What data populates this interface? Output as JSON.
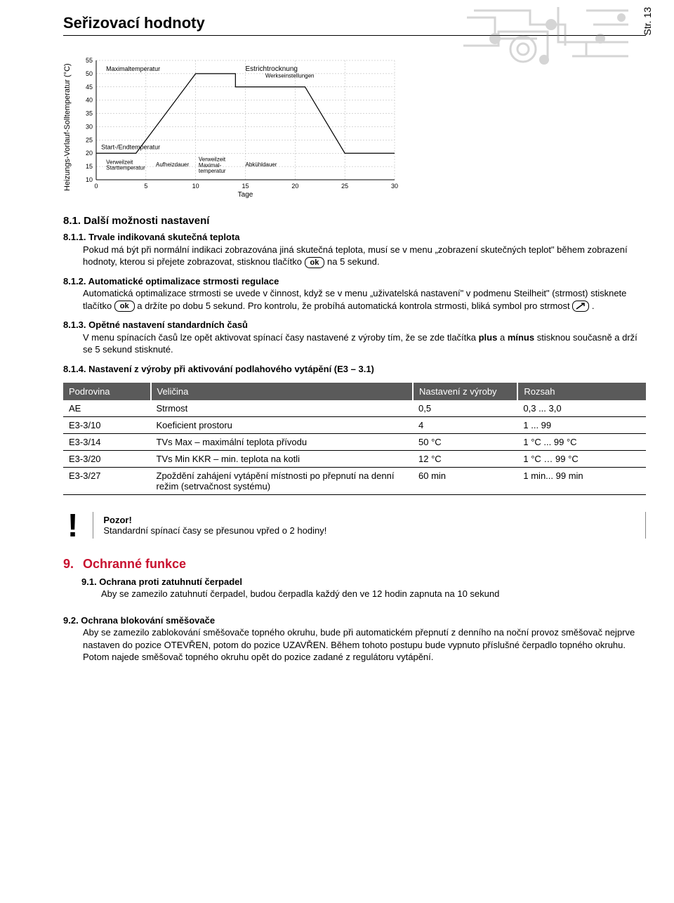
{
  "page_number": "Str. 13",
  "header_title": "Seřizovací hodnoty",
  "chart": {
    "type": "line",
    "y_axis_label": "Heizungs-Vorlauf-Solltemperatur (°C)",
    "x_axis_label": "Tage",
    "ylim": [
      10,
      55
    ],
    "ytick_step": 5,
    "xlim": [
      0,
      30
    ],
    "xtick_step": 5,
    "grid_color": "#b0b0b0",
    "line_color": "#000000",
    "line_width": 1.2,
    "background": "#ffffff",
    "label_fontsize": 9,
    "points": [
      {
        "x": 0,
        "y": 20
      },
      {
        "x": 4,
        "y": 20
      },
      {
        "x": 10,
        "y": 50
      },
      {
        "x": 14,
        "y": 50
      },
      {
        "x": 14,
        "y": 45
      },
      {
        "x": 21,
        "y": 45
      },
      {
        "x": 25,
        "y": 20
      },
      {
        "x": 30,
        "y": 20
      }
    ],
    "annotations": {
      "max_temp": "Maximaltemperatur",
      "start_end": "Start-/Endtemperatur",
      "verweil_start": "Verweilzeit\nStarttemperatur",
      "aufheiz": "Aufheizdauer",
      "verweil_max": "Verweilzeit\nMaximal-\ntemperatur",
      "abkuehl": "Abkühldauer",
      "estrich": "Estrichtrocknung",
      "werks": "Werkseinstellungen"
    }
  },
  "s81_heading": "8.1.  Další možnosti nastavení",
  "s811": {
    "heading": "8.1.1. Trvale indikovaná skutečná teplota",
    "body_a": "Pokud má být při normální indikaci zobrazována jiná skutečná teplota, musí se v menu „zobrazení skutečných teplot\" během zobrazení hodnoty, kterou si přejete zobrazovat, stisknou tlačítko ",
    "ok": "ok",
    "body_b": " na 5 sekund."
  },
  "s812": {
    "heading": "8.1.2. Automatické optimalizace strmosti regulace",
    "body_a": "Automatická optimalizace strmosti se uvede v činnost, když se v menu „uživatelská nastavení\" v podmenu Steilheit\" (strmost) stisknete tlačítko ",
    "ok": "ok",
    "body_b": " a držíte po dobu 5 sekund.  Pro kontrolu, že probíhá automatická kontrola strmosti, bliká symbol pro strmost ",
    "body_c": " ."
  },
  "s813": {
    "heading": "8.1.3. Opětné nastavení standardních časů",
    "body": "V menu spínacích časů lze opět aktivovat spínací časy nastavené z výroby tím, že se zde tlačítka plus a mínus stisknou současně a drží se 5 sekund stisknuté."
  },
  "s814_heading": "8.1.4. Nastavení z výroby při aktivování podlahového vytápění (E3 – 3.1)",
  "table": {
    "header_bg": "#5a5a5a",
    "header_fg": "#ffffff",
    "columns": [
      "Podrovina",
      "Veličina",
      "Nastavení z výroby",
      "Rozsah"
    ],
    "col_widths": [
      "15%",
      "45%",
      "18%",
      "22%"
    ],
    "rows": [
      [
        "AE",
        "Strmost",
        "0,5",
        "0,3 ... 3,0"
      ],
      [
        "E3-3/10",
        "Koeficient prostoru",
        "4",
        "1 ... 99"
      ],
      [
        "E3-3/14",
        "TVs Max – maximální teplota přívodu",
        "50 °C",
        "1 °C ... 99 °C"
      ],
      [
        "E3-3/20",
        "TVs Min KKR – min. teplota na kotli",
        "12 °C",
        "1 °C … 99 °C"
      ],
      [
        "E3-3/27",
        "Zpoždění zahájení vytápění místnosti po přepnutí na denní režim (setrvačnost systému)",
        "60 min",
        "1 min... 99 min"
      ]
    ]
  },
  "alert": {
    "title": "Pozor!",
    "body": "Standardní spínací časy se přesunou vpřed o 2 hodiny!"
  },
  "s9_heading_num": "9.",
  "s9_heading_txt": "Ochranné funkce",
  "s91": {
    "heading": "9.1.  Ochrana proti zatuhnutí čerpadel",
    "body": "Aby se zamezilo zatuhnutí čerpadel, budou čerpadla každý den ve 12 hodin zapnuta na 10 sekund"
  },
  "s92": {
    "heading": "9.2.  Ochrana blokování směšovače",
    "body": "Aby se zamezilo zablokování směšovače topného okruhu, bude při automatickém přepnutí z denního na noční provoz směšovač nejprve nastaven do pozice OTEVŘEN, potom do pozice UZAVŘEN. Během tohoto postupu bude vypnuto příslušné čerpadlo topného okruhu. Potom najede směšovač topného okruhu opět do pozice zadané z regulátoru vytápění."
  }
}
